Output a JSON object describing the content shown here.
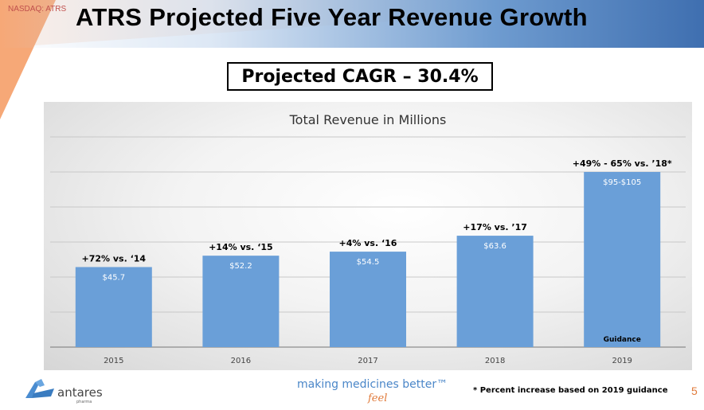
{
  "header": {
    "ticker": "NASDAQ: ATRS",
    "title": "ATRS Projected Five Year Revenue Growth"
  },
  "cagr_label": "Projected CAGR – 30.4%",
  "chart_data": {
    "type": "bar",
    "title": "Total Revenue in Millions",
    "categories": [
      "2015",
      "2016",
      "2017",
      "2018",
      "2019"
    ],
    "values": [
      45.7,
      52.2,
      54.5,
      63.6,
      100
    ],
    "value_labels": [
      "$45.7",
      "$52.2",
      "$54.5",
      "$63.6",
      "$95-$105"
    ],
    "annotations": [
      "+72% vs. ‘14",
      "+14% vs. ‘15",
      "+4% vs. ‘16",
      "+17% vs. ’17",
      "+49% - 65% vs. ’18*"
    ],
    "bar_notes": [
      "",
      "",
      "",
      "",
      "Guidance"
    ],
    "ylim": [
      0,
      120
    ],
    "grid": true,
    "colors": {
      "bar": "#6a9fd8"
    }
  },
  "footer": {
    "brand": "antares",
    "brand_sub": "pharma",
    "tagline": "making medicines better™",
    "tagline_feel": "feel",
    "footnote": "* Percent increase based on 2019 guidance",
    "page_number": "5"
  }
}
